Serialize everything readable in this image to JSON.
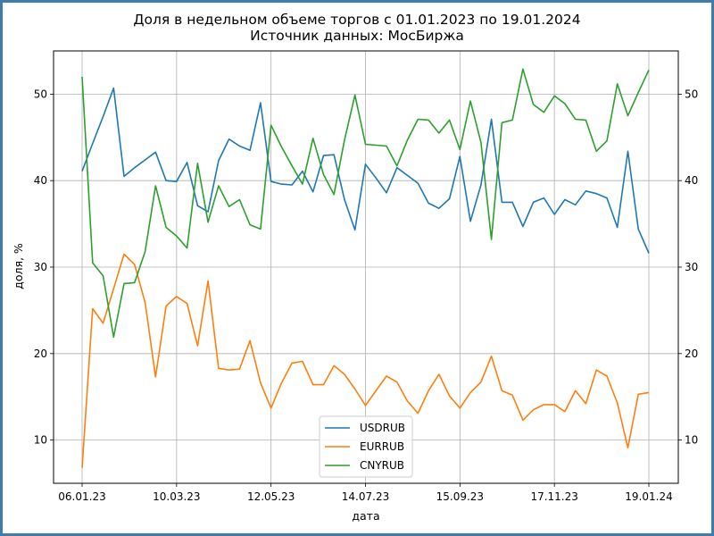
{
  "chart_data": {
    "type": "line",
    "title": "Доля в недельном объеме торгов с 01.01.2023 по 19.01.2024",
    "subtitle": "Источник данных: МосБиржа",
    "xlabel": "дата",
    "ylabel": "доля, %",
    "x_ticks": [
      "06.01.23",
      "10.03.23",
      "12.05.23",
      "14.07.23",
      "15.09.23",
      "17.11.23",
      "19.01.24"
    ],
    "y_ticks": [
      10,
      20,
      30,
      40,
      50
    ],
    "ylim": [
      5,
      55
    ],
    "grid": true,
    "right_axis": true,
    "legend_position": "lower center",
    "series": [
      {
        "name": "USDRUB",
        "color": "#1f77b4",
        "values": [
          41.1,
          44.3,
          47.4,
          50.7,
          40.5,
          41.5,
          42.4,
          43.3,
          40.0,
          39.9,
          42.1,
          37.1,
          36.4,
          42.3,
          44.8,
          44.0,
          43.5,
          49.0,
          39.9,
          39.6,
          39.5,
          41.1,
          38.7,
          42.9,
          43.0,
          37.8,
          34.3,
          41.9,
          40.3,
          38.6,
          41.5,
          40.6,
          39.7,
          37.4,
          36.8,
          37.9,
          42.8,
          35.3,
          39.5,
          47.1,
          37.5,
          37.5,
          34.7,
          37.5,
          38.0,
          36.1,
          37.8,
          37.2,
          38.8,
          38.5,
          38.0,
          34.6,
          43.4,
          34.4,
          31.6
        ]
      },
      {
        "name": "EURRUB",
        "color": "#ff7f0e",
        "values": [
          6.8,
          25.2,
          23.5,
          27.5,
          31.5,
          30.3,
          25.9,
          17.3,
          25.5,
          26.6,
          25.8,
          20.9,
          28.4,
          18.3,
          18.1,
          18.2,
          21.5,
          16.6,
          13.7,
          16.6,
          18.9,
          19.1,
          16.4,
          16.4,
          18.6,
          17.6,
          15.9,
          14.0,
          15.7,
          17.4,
          16.7,
          14.5,
          13.1,
          15.7,
          17.6,
          15.1,
          13.7,
          15.5,
          16.7,
          19.7,
          15.7,
          15.2,
          12.3,
          13.5,
          14.1,
          14.1,
          13.3,
          15.7,
          14.2,
          18.1,
          17.4,
          14.3,
          9.1,
          15.3,
          15.5
        ]
      },
      {
        "name": "CNYRUB",
        "color": "#2ca02c",
        "values": [
          52.0,
          30.5,
          29.0,
          21.9,
          28.1,
          28.2,
          31.8,
          39.4,
          34.6,
          33.6,
          32.2,
          42.0,
          35.2,
          39.4,
          37.0,
          37.8,
          34.9,
          34.4,
          46.4,
          43.9,
          41.7,
          39.6,
          44.9,
          40.7,
          38.4,
          44.7,
          49.9,
          44.2,
          44.1,
          44.0,
          41.7,
          44.7,
          47.1,
          47.0,
          45.5,
          47.0,
          43.6,
          49.2,
          44.4,
          33.2,
          46.7,
          47.0,
          52.9,
          48.8,
          47.9,
          49.8,
          48.9,
          47.1,
          47.0,
          43.4,
          44.6,
          51.2,
          47.5,
          50.2,
          52.8
        ]
      }
    ]
  }
}
